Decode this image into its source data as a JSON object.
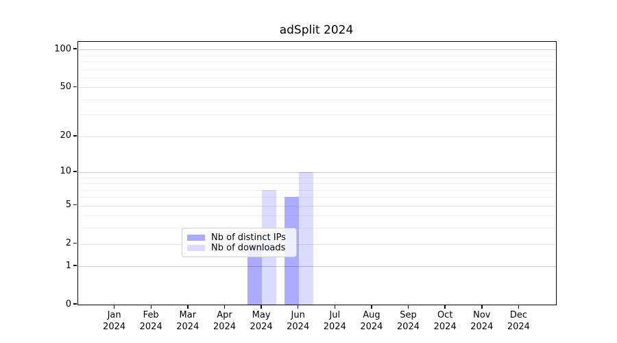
{
  "title": "adSplit 2024",
  "chart_data": {
    "type": "bar",
    "title": "adSplit 2024",
    "categories": [
      "Jan",
      "Feb",
      "Mar",
      "Apr",
      "May",
      "Jun",
      "Jul",
      "Aug",
      "Sep",
      "Oct",
      "Nov",
      "Dec"
    ],
    "category_year": "2024",
    "series": [
      {
        "name": "Nb of distinct IPs",
        "base_color": "#0000ff",
        "alpha": 0.33,
        "rendered_color": "#aaaaff",
        "values": [
          0,
          0,
          0,
          0,
          2,
          6,
          0,
          0,
          0,
          0,
          0,
          0
        ]
      },
      {
        "name": "Nb of downloads",
        "base_color": "#0000ff",
        "alpha": 0.14,
        "rendered_color": "#dcdcff",
        "values": [
          0,
          0,
          0,
          0,
          7,
          10,
          0,
          0,
          0,
          0,
          0,
          0
        ]
      }
    ],
    "xlabel": "",
    "ylabel": "",
    "yscale": "log1p",
    "ylim": [
      0,
      115
    ],
    "yticks_major": [
      0,
      1,
      2,
      5,
      10,
      20,
      50,
      100
    ],
    "yticks_decade": [
      1,
      10,
      100
    ],
    "yticks_minor": [
      3,
      4,
      6,
      7,
      8,
      9,
      30,
      40,
      60,
      70,
      80,
      90
    ],
    "grid": true,
    "legend_position": "lower-center",
    "axis_color": "#000000",
    "grid_color_major": "#c6c6c6",
    "grid_color_minor": "#f0f0f0"
  }
}
